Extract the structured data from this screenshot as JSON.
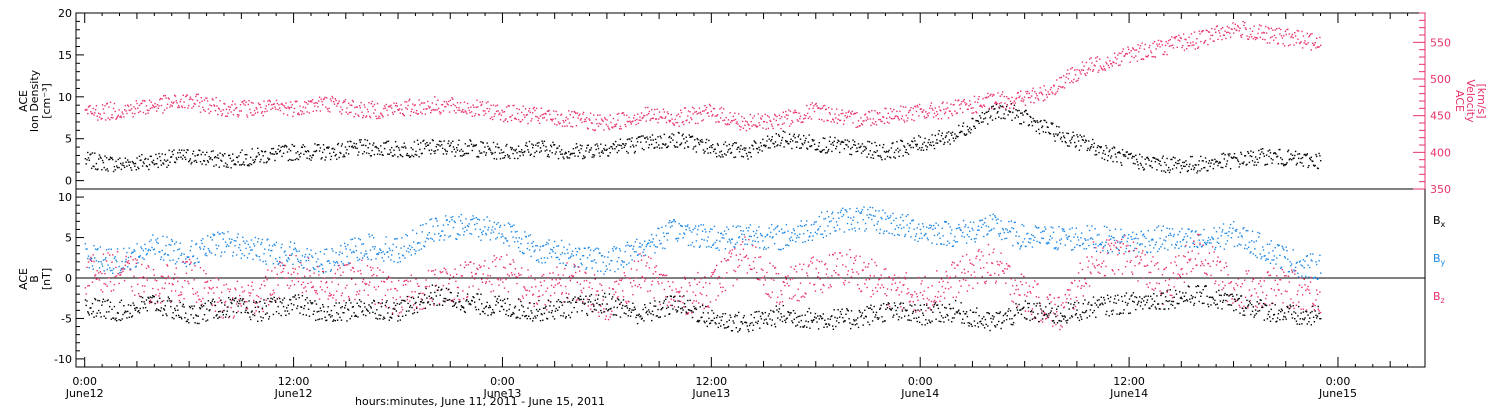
{
  "chart_data": [
    {
      "type": "scatter",
      "panel": "top",
      "ylabel_left": [
        "ACE",
        "Ion Density",
        "[cm⁻³]"
      ],
      "ylabel_right": [
        "ACE",
        "Velocity",
        "[km/s]"
      ],
      "ylim_left": [
        -1,
        20
      ],
      "ylim_right": [
        350,
        590
      ],
      "yticks_left": [
        0,
        5,
        10,
        15,
        20
      ],
      "yticks_right": [
        350,
        400,
        450,
        500,
        550
      ],
      "colors": {
        "density": "#000000",
        "velocity": "#e8336a",
        "right_axis": "#e8336a"
      },
      "series": [
        {
          "axis": "left",
          "color": "#000000",
          "x_hours": [
            0,
            2,
            4,
            6,
            8,
            10,
            12,
            14,
            16,
            18,
            20,
            22,
            24,
            26,
            28,
            30,
            32,
            34,
            36,
            38,
            40,
            42,
            44,
            46,
            48,
            50,
            51,
            52,
            53,
            54,
            56,
            58,
            60,
            62,
            64,
            66,
            68,
            70,
            71
          ],
          "values": [
            2.5,
            2.0,
            2.5,
            3.0,
            2.5,
            3.0,
            3.5,
            3.5,
            4.0,
            3.8,
            4.0,
            4.0,
            3.5,
            4.0,
            3.5,
            4.0,
            4.5,
            5.0,
            4.0,
            3.5,
            5.0,
            4.5,
            4.0,
            3.5,
            4.5,
            5.5,
            7.0,
            8.0,
            8.5,
            7.5,
            5.5,
            4.0,
            2.5,
            2.0,
            2.0,
            2.5,
            3.0,
            2.5,
            2.5
          ]
        },
        {
          "axis": "right",
          "color": "#e8336a",
          "x_hours": [
            0,
            2,
            4,
            6,
            8,
            10,
            12,
            14,
            16,
            18,
            20,
            22,
            24,
            26,
            28,
            30,
            32,
            34,
            36,
            38,
            40,
            42,
            44,
            46,
            48,
            50,
            52,
            54,
            55,
            56,
            57,
            58,
            60,
            62,
            64,
            66,
            68,
            70,
            71
          ],
          "values": [
            455,
            458,
            465,
            470,
            462,
            460,
            462,
            468,
            458,
            460,
            465,
            462,
            455,
            450,
            445,
            440,
            452,
            448,
            455,
            440,
            445,
            458,
            445,
            452,
            455,
            460,
            470,
            475,
            480,
            495,
            510,
            520,
            535,
            545,
            555,
            570,
            560,
            555,
            548
          ]
        }
      ]
    },
    {
      "type": "scatter",
      "panel": "bottom",
      "ylabel_left": [
        "ACE",
        "B",
        "[nT]"
      ],
      "ylim": [
        -11,
        11
      ],
      "yticks": [
        -10,
        -5,
        0,
        5,
        10
      ],
      "zero_line": true,
      "legend": [
        "Bx",
        "By",
        "Bz"
      ],
      "legend_position": "right",
      "series": [
        {
          "name": "Bx",
          "color": "#000000",
          "x_hours": [
            0,
            2,
            4,
            6,
            8,
            10,
            12,
            14,
            16,
            18,
            20,
            22,
            24,
            26,
            28,
            30,
            32,
            34,
            36,
            38,
            40,
            42,
            44,
            46,
            48,
            50,
            52,
            54,
            56,
            58,
            60,
            62,
            64,
            66,
            68,
            70,
            71
          ],
          "values": [
            -3.5,
            -4.0,
            -3.0,
            -4.5,
            -3.5,
            -4.0,
            -3.0,
            -4.5,
            -3.5,
            -4.0,
            -2.0,
            -3.0,
            -3.5,
            -4.0,
            -3.5,
            -3.0,
            -4.5,
            -3.0,
            -5.0,
            -5.5,
            -4.5,
            -5.0,
            -5.0,
            -4.0,
            -4.5,
            -4.0,
            -5.5,
            -4.0,
            -4.5,
            -3.5,
            -3.0,
            -2.5,
            -2.0,
            -3.0,
            -4.0,
            -4.8,
            -4.6
          ]
        },
        {
          "name": "By",
          "color": "#1e88e5",
          "x_hours": [
            0,
            2,
            4,
            6,
            8,
            10,
            12,
            14,
            16,
            18,
            20,
            22,
            24,
            26,
            28,
            30,
            32,
            34,
            36,
            38,
            40,
            42,
            44,
            46,
            48,
            50,
            52,
            54,
            56,
            58,
            60,
            62,
            64,
            66,
            68,
            70,
            71
          ],
          "values": [
            3.0,
            2.0,
            4.0,
            3.0,
            4.5,
            3.5,
            3.0,
            2.0,
            4.0,
            3.5,
            6.0,
            6.5,
            6.0,
            3.5,
            3.0,
            2.0,
            4.0,
            6.0,
            5.0,
            5.5,
            5.0,
            6.5,
            7.5,
            7.0,
            6.0,
            5.5,
            6.5,
            5.0,
            5.0,
            5.0,
            4.5,
            5.0,
            4.5,
            5.5,
            3.5,
            1.5,
            1.5
          ]
        },
        {
          "name": "Bz",
          "color": "#e8336a",
          "x_hours": [
            0,
            2,
            4,
            6,
            8,
            10,
            12,
            14,
            16,
            18,
            20,
            22,
            24,
            26,
            28,
            30,
            32,
            34,
            36,
            38,
            40,
            42,
            44,
            46,
            48,
            50,
            52,
            54,
            56,
            58,
            60,
            62,
            64,
            66,
            68,
            70,
            71
          ],
          "values": [
            0.5,
            1.0,
            -1.0,
            0.0,
            -3.0,
            -2.0,
            1.0,
            -1.0,
            0.0,
            -2.5,
            -1.0,
            0.0,
            1.0,
            -2.0,
            0.0,
            -3.0,
            1.0,
            -2.5,
            -1.0,
            3.0,
            -1.5,
            0.5,
            1.5,
            -1.0,
            -2.0,
            0.0,
            2.0,
            -2.0,
            -4.5,
            2.5,
            3.0,
            -1.0,
            3.5,
            -1.5,
            -1.0,
            -1.5,
            -2.0
          ]
        }
      ]
    }
  ],
  "x_axis": {
    "range_hours": [
      -0.5,
      77
    ],
    "ticks_hours": [
      0,
      12,
      24,
      36,
      48,
      60,
      72
    ],
    "tick_time": [
      "0:00",
      "12:00",
      "0:00",
      "12:00",
      "0:00",
      "12:00",
      "0:00"
    ],
    "tick_date": [
      "June12",
      "June12",
      "June13",
      "June13",
      "June14",
      "June14",
      "June15"
    ],
    "xlabel": "hours:minutes, June 11, 2011 - June 15, 2011"
  }
}
